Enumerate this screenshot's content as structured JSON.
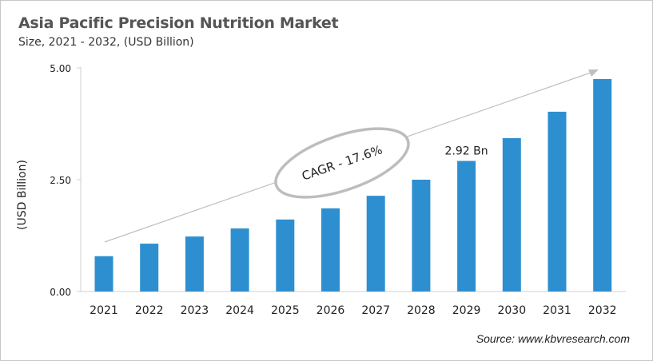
{
  "chart_data": {
    "type": "bar",
    "title": "Asia Pacific Precision Nutrition Market",
    "subtitle": "Size, 2021 - 2032, (USD Billion)",
    "ylabel": "(USD Billion)",
    "xlabel": "",
    "categories": [
      "2021",
      "2022",
      "2023",
      "2024",
      "2025",
      "2026",
      "2027",
      "2028",
      "2029",
      "2030",
      "2031",
      "2032"
    ],
    "values": [
      0.79,
      1.07,
      1.23,
      1.41,
      1.61,
      1.86,
      2.14,
      2.5,
      2.92,
      3.43,
      4.02,
      4.75
    ],
    "ylim": [
      0,
      5
    ],
    "yticks": [
      "0.00",
      "2.50",
      "5.00"
    ],
    "grid": false,
    "bar_color": "#2e8fd0",
    "data_labels": [
      {
        "category": "2029",
        "text": "2.92 Bn"
      }
    ],
    "annotation": "CAGR - 17.6%",
    "source": "Source: www.kbvresearch.com"
  }
}
